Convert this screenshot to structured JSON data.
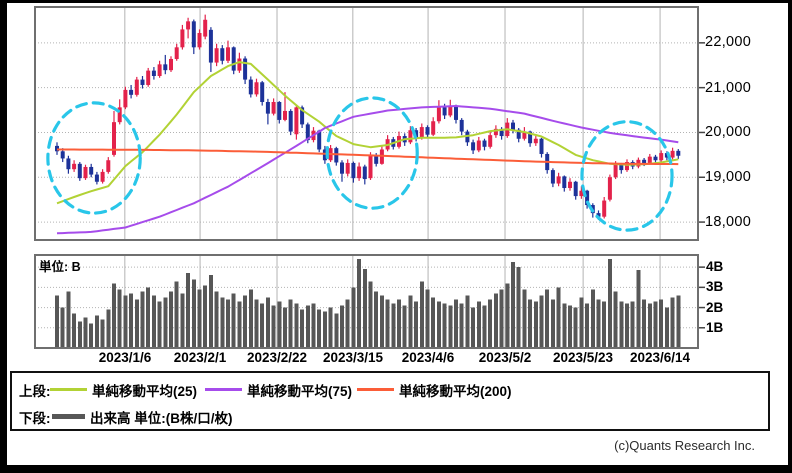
{
  "footer": {
    "copyright": "(c)Quants Research Inc."
  },
  "legend": {
    "upper_label": "上段:",
    "lower_label": "下段:"
  },
  "chart_data": {
    "type": "candlestick+volume",
    "title": "",
    "price_axis": {
      "side": "right",
      "range": [
        17600,
        22800
      ],
      "ticks": [
        {
          "value": 22000,
          "label": "22,000"
        },
        {
          "value": 21000,
          "label": "21,000"
        },
        {
          "value": 20000,
          "label": "20,000"
        },
        {
          "value": 19000,
          "label": "19,000"
        },
        {
          "value": 18000,
          "label": "18,000"
        }
      ]
    },
    "date_axis": {
      "ticks": [
        {
          "index": 11.9,
          "label": "2023/1/6"
        },
        {
          "index": 25.1,
          "label": "2023/2/1"
        },
        {
          "index": 38.6,
          "label": "2023/2/22"
        },
        {
          "index": 51.9,
          "label": "2023/3/15"
        },
        {
          "index": 65.1,
          "label": "2023/4/6"
        },
        {
          "index": 78.6,
          "label": "2023/5/2"
        },
        {
          "index": 92.3,
          "label": "2023/5/23"
        },
        {
          "index": 105.8,
          "label": "2023/6/14"
        }
      ]
    },
    "volume_axis": {
      "max": 4.6,
      "unit_label": "単位: B",
      "ticks": [
        {
          "value": 4,
          "label": "4B"
        },
        {
          "value": 3,
          "label": "3B"
        },
        {
          "value": 2,
          "label": "2B"
        },
        {
          "value": 1,
          "label": "1B"
        }
      ]
    },
    "candles": {
      "format": "[open,high,low,close]",
      "up_color": "#e3224b",
      "down_color": "#1d3299",
      "ohlc": [
        [
          19700,
          19780,
          19500,
          19580
        ],
        [
          19580,
          19650,
          19340,
          19420
        ],
        [
          19420,
          19480,
          19080,
          19180
        ],
        [
          19180,
          19380,
          19120,
          19300
        ],
        [
          19300,
          19340,
          18920,
          18980
        ],
        [
          18980,
          19280,
          18940,
          19230
        ],
        [
          19230,
          19300,
          19000,
          19060
        ],
        [
          19060,
          19120,
          18840,
          18900
        ],
        [
          18900,
          19180,
          18860,
          19120
        ],
        [
          19120,
          19450,
          19080,
          19380
        ],
        [
          19500,
          20480,
          19460,
          20230
        ],
        [
          20230,
          20740,
          20180,
          20560
        ],
        [
          20560,
          21020,
          20520,
          20950
        ],
        [
          20950,
          21060,
          20760,
          20840
        ],
        [
          20840,
          21240,
          20800,
          21180
        ],
        [
          21180,
          21260,
          20980,
          21060
        ],
        [
          21060,
          21440,
          21020,
          21380
        ],
        [
          21380,
          21460,
          21180,
          21260
        ],
        [
          21260,
          21600,
          21220,
          21520
        ],
        [
          21520,
          21730,
          21300,
          21390
        ],
        [
          21390,
          21700,
          21350,
          21640
        ],
        [
          21640,
          21980,
          21600,
          21900
        ],
        [
          21900,
          22400,
          21850,
          22300
        ],
        [
          22300,
          22560,
          22100,
          22480
        ],
        [
          22480,
          22520,
          21750,
          21900
        ],
        [
          21900,
          22300,
          21850,
          22220
        ],
        [
          22140,
          22630,
          22080,
          22515
        ],
        [
          22290,
          22350,
          21350,
          21560
        ],
        [
          21560,
          21980,
          21480,
          21880
        ],
        [
          21880,
          21950,
          21520,
          21600
        ],
        [
          21600,
          22050,
          21550,
          21900
        ],
        [
          21900,
          21920,
          21300,
          21380
        ],
        [
          21380,
          21780,
          21330,
          21650
        ],
        [
          21650,
          21700,
          21080,
          21180
        ],
        [
          21180,
          21250,
          20780,
          20850
        ],
        [
          20850,
          21200,
          20800,
          21120
        ],
        [
          21120,
          21150,
          20600,
          20680
        ],
        [
          20680,
          20750,
          20180,
          20420
        ],
        [
          20420,
          20760,
          20380,
          20680
        ],
        [
          20680,
          20700,
          20200,
          20280
        ],
        [
          20280,
          20900,
          20250,
          20480
        ],
        [
          20480,
          20520,
          19940,
          20020
        ],
        [
          19960,
          20620,
          19840,
          20560
        ],
        [
          20560,
          20600,
          20100,
          20180
        ],
        [
          20180,
          20220,
          19760,
          19830
        ],
        [
          19830,
          20120,
          19780,
          20040
        ],
        [
          20040,
          20060,
          19560,
          19620
        ],
        [
          19620,
          19700,
          19300,
          19380
        ],
        [
          19380,
          19720,
          19340,
          19650
        ],
        [
          19650,
          19680,
          19260,
          19330
        ],
        [
          19330,
          19380,
          18900,
          19080
        ],
        [
          19080,
          19400,
          19020,
          19320
        ],
        [
          19320,
          19350,
          18880,
          18980
        ],
        [
          18980,
          19330,
          18920,
          19240
        ],
        [
          19240,
          19280,
          18840,
          18960
        ],
        [
          18980,
          19560,
          18940,
          19480
        ],
        [
          19480,
          19540,
          19240,
          19300
        ],
        [
          19300,
          19700,
          19280,
          19620
        ],
        [
          19620,
          19940,
          19580,
          19850
        ],
        [
          19850,
          19900,
          19620,
          19680
        ],
        [
          19680,
          20020,
          19640,
          19920
        ],
        [
          19920,
          19980,
          19700,
          19780
        ],
        [
          19780,
          20140,
          19740,
          20050
        ],
        [
          20050,
          20100,
          19800,
          19880
        ],
        [
          19880,
          20200,
          19840,
          20120
        ],
        [
          20120,
          20160,
          19870,
          19950
        ],
        [
          19950,
          20340,
          19920,
          20250
        ],
        [
          20250,
          20720,
          20200,
          20560
        ],
        [
          20560,
          20640,
          20300,
          20380
        ],
        [
          20380,
          20730,
          20340,
          20600
        ],
        [
          20600,
          20620,
          20200,
          20280
        ],
        [
          20280,
          20320,
          19940,
          20020
        ],
        [
          20020,
          20060,
          19700,
          19780
        ],
        [
          19780,
          19840,
          19520,
          19600
        ],
        [
          19600,
          19900,
          19560,
          19820
        ],
        [
          19820,
          19860,
          19600,
          19680
        ],
        [
          19680,
          20020,
          19640,
          19940
        ],
        [
          19940,
          20160,
          19880,
          20080
        ],
        [
          20080,
          20120,
          19840,
          19920
        ],
        [
          19920,
          20320,
          19880,
          20220
        ],
        [
          20220,
          20280,
          19980,
          20060
        ],
        [
          20060,
          20100,
          19780,
          19860
        ],
        [
          19860,
          20120,
          19820,
          20020
        ],
        [
          20020,
          20040,
          19680,
          19760
        ],
        [
          19760,
          19920,
          19700,
          19860
        ],
        [
          19860,
          19880,
          19440,
          19520
        ],
        [
          19520,
          19560,
          19080,
          19160
        ],
        [
          19160,
          19200,
          18780,
          18860
        ],
        [
          18860,
          19100,
          18800,
          19020
        ],
        [
          19020,
          19040,
          18680,
          18760
        ],
        [
          18760,
          18980,
          18700,
          18900
        ],
        [
          18900,
          18920,
          18500,
          18580
        ],
        [
          18580,
          18800,
          18520,
          18700
        ],
        [
          18700,
          18720,
          18300,
          18380
        ],
        [
          18380,
          18420,
          18100,
          18200
        ],
        [
          18200,
          18260,
          18050,
          18120
        ],
        [
          18120,
          18560,
          18080,
          18480
        ],
        [
          18500,
          19060,
          18460,
          19000
        ],
        [
          19000,
          19360,
          18960,
          19280
        ],
        [
          19280,
          19320,
          19080,
          19160
        ],
        [
          19160,
          19400,
          19120,
          19340
        ],
        [
          19340,
          19380,
          19180,
          19240
        ],
        [
          19240,
          19440,
          19200,
          19390
        ],
        [
          19390,
          19430,
          19250,
          19310
        ],
        [
          19310,
          19520,
          19280,
          19460
        ],
        [
          19460,
          19500,
          19320,
          19380
        ],
        [
          19380,
          19600,
          19340,
          19540
        ],
        [
          19540,
          19580,
          19380,
          19440
        ],
        [
          19440,
          19660,
          19400,
          19590
        ],
        [
          19590,
          19630,
          19410,
          19480
        ]
      ]
    },
    "volume": {
      "color": "#575757",
      "values": [
        2.6,
        2.0,
        2.8,
        1.7,
        1.3,
        1.5,
        1.2,
        1.6,
        1.4,
        1.9,
        3.2,
        2.9,
        2.6,
        2.7,
        2.4,
        2.8,
        3.0,
        2.6,
        2.3,
        2.5,
        2.8,
        3.3,
        2.7,
        3.7,
        3.4,
        2.9,
        3.1,
        3.6,
        2.8,
        2.5,
        2.4,
        2.7,
        2.3,
        2.6,
        2.9,
        2.4,
        2.2,
        2.5,
        2.1,
        2.3,
        2.0,
        2.4,
        2.2,
        1.9,
        2.1,
        2.2,
        1.9,
        1.8,
        2.0,
        1.7,
        2.1,
        2.4,
        3.0,
        4.4,
        3.9,
        3.3,
        2.8,
        2.6,
        2.4,
        2.2,
        2.4,
        2.1,
        2.6,
        2.3,
        3.3,
        2.9,
        2.5,
        2.3,
        2.2,
        2.1,
        2.4,
        2.2,
        2.6,
        2.0,
        2.3,
        2.1,
        2.4,
        2.7,
        2.9,
        3.2,
        4.25,
        4.0,
        2.9,
        2.4,
        2.3,
        2.6,
        2.9,
        2.4,
        3.0,
        2.2,
        2.1,
        2.0,
        2.5,
        2.2,
        2.9,
        2.4,
        2.3,
        4.4,
        2.8,
        2.3,
        2.2,
        2.3,
        3.85,
        2.4,
        2.2,
        2.3,
        2.4,
        2.0,
        2.5,
        2.6
      ]
    },
    "moving_averages": [
      {
        "name": "単純移動平均(25)",
        "color": "#b2d235",
        "anchors": [
          [
            0,
            18420
          ],
          [
            3,
            18560
          ],
          [
            6,
            18690
          ],
          [
            9,
            18800
          ],
          [
            12,
            19250
          ],
          [
            15,
            19560
          ],
          [
            18,
            19950
          ],
          [
            21,
            20400
          ],
          [
            24,
            20900
          ],
          [
            27,
            21260
          ],
          [
            30,
            21480
          ],
          [
            32,
            21570
          ],
          [
            34,
            21530
          ],
          [
            37,
            21180
          ],
          [
            40,
            20820
          ],
          [
            43,
            20500
          ],
          [
            46,
            20240
          ],
          [
            49,
            19920
          ],
          [
            52,
            19740
          ],
          [
            55,
            19670
          ],
          [
            58,
            19720
          ],
          [
            61,
            19850
          ],
          [
            64,
            19880
          ],
          [
            67,
            19880
          ],
          [
            70,
            19890
          ],
          [
            73,
            19940
          ],
          [
            76,
            20030
          ],
          [
            79,
            20070
          ],
          [
            82,
            20010
          ],
          [
            85,
            19910
          ],
          [
            88,
            19720
          ],
          [
            91,
            19500
          ],
          [
            94,
            19380
          ],
          [
            97,
            19300
          ],
          [
            100,
            19280
          ],
          [
            103,
            19290
          ],
          [
            106,
            19330
          ],
          [
            109,
            19400
          ]
        ]
      },
      {
        "name": "単純移動平均(75)",
        "color": "#a64ceb",
        "anchors": [
          [
            0,
            17750
          ],
          [
            6,
            17780
          ],
          [
            12,
            17880
          ],
          [
            18,
            18120
          ],
          [
            24,
            18420
          ],
          [
            30,
            18790
          ],
          [
            36,
            19240
          ],
          [
            42,
            19700
          ],
          [
            47,
            20100
          ],
          [
            52,
            20350
          ],
          [
            58,
            20490
          ],
          [
            64,
            20560
          ],
          [
            70,
            20590
          ],
          [
            76,
            20530
          ],
          [
            82,
            20420
          ],
          [
            87,
            20260
          ],
          [
            92,
            20110
          ],
          [
            97,
            19990
          ],
          [
            102,
            19900
          ],
          [
            106,
            19840
          ],
          [
            109,
            19780
          ]
        ]
      },
      {
        "name": "単純移動平均(200)",
        "color": "#fb5d38",
        "anchors": [
          [
            0,
            19620
          ],
          [
            12,
            19615
          ],
          [
            24,
            19600
          ],
          [
            36,
            19570
          ],
          [
            48,
            19520
          ],
          [
            60,
            19465
          ],
          [
            72,
            19405
          ],
          [
            84,
            19350
          ],
          [
            92,
            19320
          ],
          [
            100,
            19300
          ],
          [
            109,
            19295
          ]
        ]
      }
    ],
    "volume_legend": {
      "label": "出来高 単位:(B株/口/枚)",
      "color": "#575757"
    },
    "annotations": {
      "color": "#29c6e9",
      "ellipses": [
        {
          "cx_index": 6.5,
          "cy_price": 19430,
          "rx_index": 8.1,
          "ry_price": 1230
        },
        {
          "cx_index": 55.3,
          "cy_price": 19540,
          "rx_index": 7.9,
          "ry_price": 1230
        },
        {
          "cx_index": 100.0,
          "cy_price": 19030,
          "rx_index": 7.9,
          "ry_price": 1210
        }
      ]
    }
  }
}
